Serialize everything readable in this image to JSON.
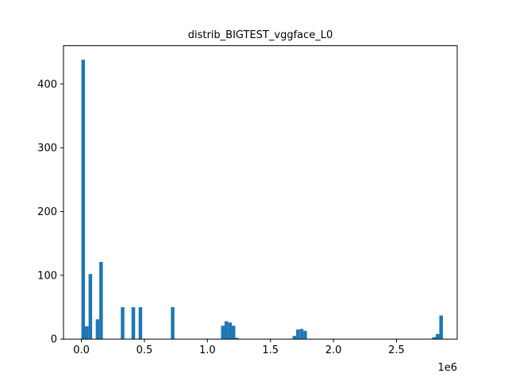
{
  "chart_data": {
    "type": "bar",
    "title": "distrib_BIGTEST_vggface_L0",
    "xlabel": "",
    "ylabel": "",
    "x_offset_label": "1e6",
    "xlim": [
      -0.142,
      2.982
    ],
    "ylim": [
      0,
      460
    ],
    "bin_width": 0.0284,
    "color": "#1f77b4",
    "grid": false,
    "x_ticks": [
      {
        "value": 0.0,
        "label": "0.0"
      },
      {
        "value": 0.5,
        "label": "0.5"
      },
      {
        "value": 1.0,
        "label": "1.0"
      },
      {
        "value": 1.5,
        "label": "1.5"
      },
      {
        "value": 2.0,
        "label": "2.0"
      },
      {
        "value": 2.5,
        "label": "2.5"
      }
    ],
    "y_ticks": [
      {
        "value": 0,
        "label": "0"
      },
      {
        "value": 100,
        "label": "100"
      },
      {
        "value": 200,
        "label": "200"
      },
      {
        "value": 300,
        "label": "300"
      },
      {
        "value": 400,
        "label": "400"
      }
    ],
    "bins": [
      {
        "x": 0.0,
        "value": 438
      },
      {
        "x": 0.028,
        "value": 20
      },
      {
        "x": 0.057,
        "value": 102
      },
      {
        "x": 0.114,
        "value": 31
      },
      {
        "x": 0.142,
        "value": 121
      },
      {
        "x": 0.313,
        "value": 50
      },
      {
        "x": 0.398,
        "value": 50
      },
      {
        "x": 0.454,
        "value": 50
      },
      {
        "x": 0.71,
        "value": 50
      },
      {
        "x": 1.108,
        "value": 21
      },
      {
        "x": 1.136,
        "value": 28
      },
      {
        "x": 1.165,
        "value": 26
      },
      {
        "x": 1.193,
        "value": 21
      },
      {
        "x": 1.221,
        "value": 2
      },
      {
        "x": 1.676,
        "value": 5
      },
      {
        "x": 1.704,
        "value": 15
      },
      {
        "x": 1.733,
        "value": 16
      },
      {
        "x": 1.761,
        "value": 13
      },
      {
        "x": 2.784,
        "value": 3
      },
      {
        "x": 2.812,
        "value": 8
      },
      {
        "x": 2.84,
        "value": 37
      }
    ]
  }
}
